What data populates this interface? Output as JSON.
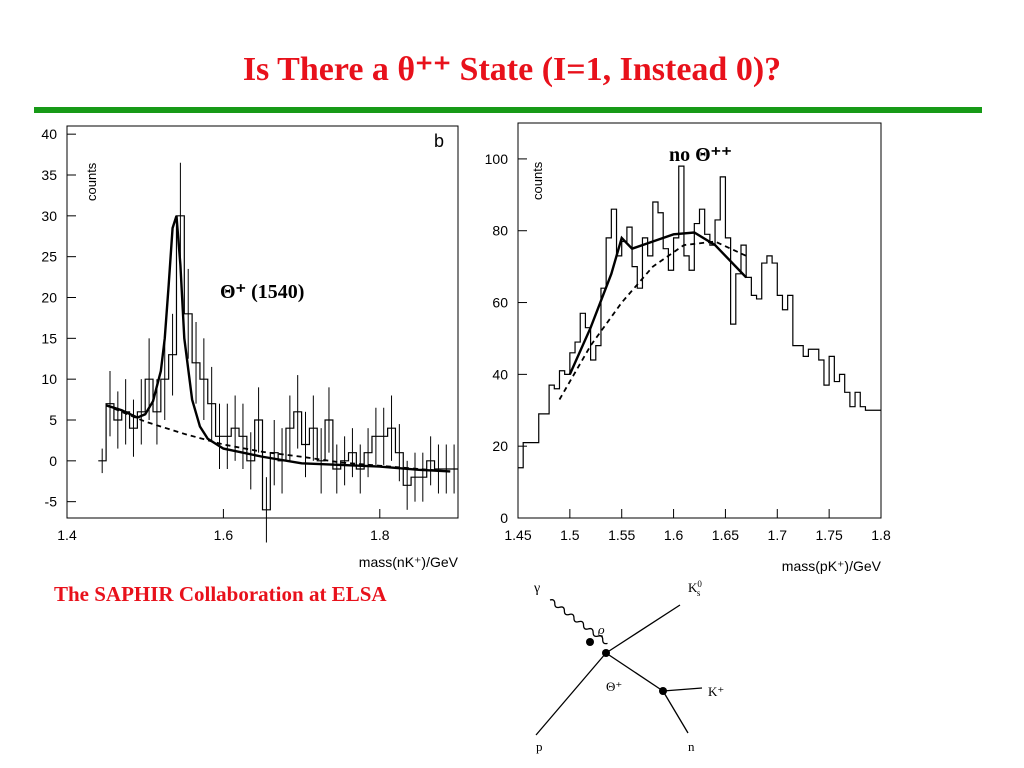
{
  "slide": {
    "title": "Is There a θ⁺⁺ State (I=1, Instead 0)?",
    "caption": "The SAPHIR Collaboration at ELSA",
    "accent_color": "#e8111b",
    "rule_color": "#179a17"
  },
  "chart_data": [
    {
      "type": "bar",
      "histogram": true,
      "panel_label": "b",
      "annotation": "Θ⁺ (1540)",
      "ylabel": "counts",
      "xlabel": "mass(nK⁺)/GeV",
      "xlim": [
        1.4,
        1.9
      ],
      "ylim": [
        -7,
        41
      ],
      "xticks": [
        1.4,
        1.6,
        1.8
      ],
      "yticks": [
        -5,
        0,
        5,
        10,
        15,
        20,
        25,
        30,
        35,
        40
      ],
      "bin_width": 0.01,
      "x": [
        1.44,
        1.45,
        1.46,
        1.47,
        1.48,
        1.49,
        1.5,
        1.51,
        1.52,
        1.53,
        1.54,
        1.55,
        1.56,
        1.57,
        1.58,
        1.59,
        1.6,
        1.61,
        1.62,
        1.63,
        1.64,
        1.65,
        1.66,
        1.67,
        1.68,
        1.69,
        1.7,
        1.71,
        1.72,
        1.73,
        1.74,
        1.75,
        1.76,
        1.77,
        1.78,
        1.79,
        1.8,
        1.81,
        1.82,
        1.83,
        1.84,
        1.85,
        1.86,
        1.87,
        1.88,
        1.89
      ],
      "values": [
        0,
        7,
        5,
        6,
        4,
        6,
        10,
        6,
        10,
        13,
        30,
        18,
        12,
        10,
        7,
        3,
        3,
        4,
        3,
        0,
        5,
        -6,
        1,
        0,
        4,
        6,
        2,
        4,
        0,
        5,
        -1,
        0,
        1,
        -1,
        1,
        3,
        3,
        4,
        1,
        -3,
        -2,
        -2,
        0,
        -1,
        -1,
        -1
      ],
      "errors": [
        1.5,
        4,
        3.5,
        4,
        3.5,
        4,
        5,
        4,
        5,
        5,
        6.5,
        5.5,
        5,
        5,
        4.5,
        4,
        4,
        4,
        4,
        3.5,
        4,
        4,
        4,
        4,
        4,
        4.5,
        4,
        4,
        4,
        4,
        3,
        3,
        3,
        3,
        3,
        3.5,
        3.5,
        4,
        3.5,
        3,
        3,
        3,
        3,
        3,
        3,
        3
      ],
      "series": [
        {
          "name": "",
          "style": "solid",
          "x": [
            1.45,
            1.47,
            1.49,
            1.5,
            1.51,
            1.52,
            1.525,
            1.53,
            1.535,
            1.54,
            1.545,
            1.55,
            1.56,
            1.57,
            1.58,
            1.6,
            1.65,
            1.7,
            1.75,
            1.8,
            1.85,
            1.89
          ],
          "values": [
            6.8,
            6.2,
            5.3,
            5.7,
            7.3,
            11,
            15,
            21.5,
            28.5,
            30,
            24,
            15,
            7.5,
            4.2,
            2.7,
            1.5,
            0.5,
            -0.3,
            -0.5,
            -0.7,
            -1.1,
            -1.3
          ]
        },
        {
          "name": "",
          "style": "dashed",
          "x": [
            1.45,
            1.5,
            1.55,
            1.6,
            1.65,
            1.7,
            1.75,
            1.8,
            1.85,
            1.89
          ],
          "values": [
            6.8,
            4.8,
            3.3,
            2.0,
            1.1,
            0.5,
            -0.2,
            -0.6,
            -1.0,
            -1.3
          ]
        }
      ]
    },
    {
      "type": "bar",
      "histogram": true,
      "annotation": "no Θ⁺⁺",
      "ylabel": "counts",
      "xlabel": "mass(pK⁺)/GeV",
      "xlim": [
        1.45,
        1.8
      ],
      "ylim": [
        0,
        110
      ],
      "xticks": [
        1.45,
        1.5,
        1.55,
        1.6,
        1.65,
        1.7,
        1.75,
        1.8
      ],
      "yticks": [
        0,
        20,
        40,
        60,
        80,
        100
      ],
      "bin_width": 0.005,
      "x": [
        1.45,
        1.455,
        1.46,
        1.465,
        1.47,
        1.475,
        1.48,
        1.485,
        1.49,
        1.495,
        1.5,
        1.505,
        1.51,
        1.515,
        1.52,
        1.525,
        1.53,
        1.535,
        1.54,
        1.545,
        1.55,
        1.555,
        1.56,
        1.565,
        1.57,
        1.575,
        1.58,
        1.585,
        1.59,
        1.595,
        1.6,
        1.605,
        1.61,
        1.615,
        1.62,
        1.625,
        1.63,
        1.635,
        1.64,
        1.645,
        1.65,
        1.655,
        1.66,
        1.665,
        1.67,
        1.675,
        1.68,
        1.685,
        1.69,
        1.695,
        1.7,
        1.705,
        1.71,
        1.715,
        1.72,
        1.725,
        1.73,
        1.735,
        1.74,
        1.745,
        1.75,
        1.755,
        1.76,
        1.765,
        1.77,
        1.775,
        1.78,
        1.785,
        1.79,
        1.795
      ],
      "values": [
        14,
        21,
        21,
        21,
        29,
        29,
        37,
        36,
        41,
        40,
        46,
        49,
        57,
        53,
        44,
        48,
        64,
        78,
        86,
        73,
        77,
        81,
        70,
        64,
        78,
        73,
        88,
        85,
        75,
        69,
        78,
        98,
        73,
        69,
        82,
        86,
        79,
        76,
        83,
        95,
        78,
        54,
        68,
        76,
        67,
        62,
        61,
        71,
        73,
        71,
        62,
        58,
        62,
        48,
        48,
        45,
        47,
        47,
        44,
        37,
        45,
        38,
        40,
        35,
        31,
        35,
        31,
        30,
        30,
        30
      ],
      "series": [
        {
          "name": "",
          "style": "solid",
          "x": [
            1.5,
            1.52,
            1.54,
            1.55,
            1.56,
            1.58,
            1.6,
            1.62,
            1.64,
            1.66,
            1.67
          ],
          "values": [
            40,
            53,
            68,
            78,
            75,
            77,
            79,
            79.5,
            76,
            70,
            67
          ]
        },
        {
          "name": "",
          "style": "dashed",
          "x": [
            1.49,
            1.52,
            1.55,
            1.58,
            1.61,
            1.64,
            1.67
          ],
          "values": [
            33,
            48,
            60,
            70,
            76,
            77,
            73
          ]
        }
      ]
    }
  ],
  "diagram": {
    "labels": [
      "γ",
      "ϱ",
      "p",
      "Θ⁺",
      "K⁺",
      "n"
    ],
    "kaon_label": "K",
    "kaon_sub": "s",
    "kaon_sup": "0"
  }
}
